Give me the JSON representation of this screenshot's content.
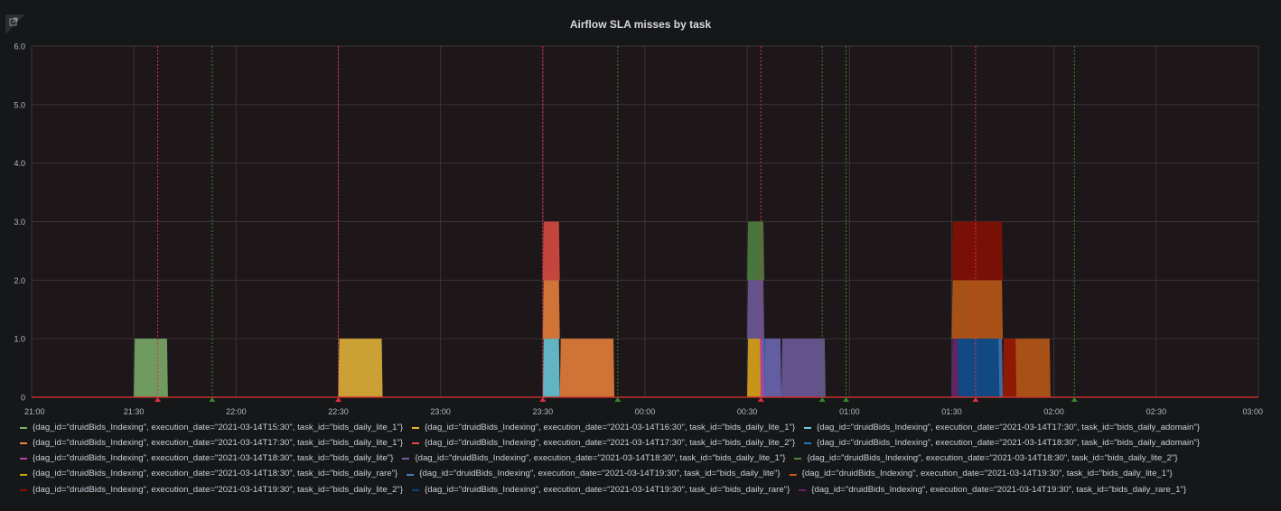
{
  "panel": {
    "title": "Airflow SLA misses by task",
    "menu_icon": "share-icon"
  },
  "chart_data": {
    "type": "area",
    "title": "Airflow SLA misses by task",
    "stacked": true,
    "grid": true,
    "legend_position": "bottom",
    "x_unit": "time",
    "xlim": [
      "21:00",
      "03:00"
    ],
    "ylim": [
      0,
      6
    ],
    "x_ticks": [
      "21:00",
      "21:30",
      "22:00",
      "22:30",
      "23:00",
      "23:30",
      "00:00",
      "00:30",
      "01:00",
      "01:30",
      "02:00",
      "02:30",
      "03:00"
    ],
    "y_ticks": [
      "0",
      "1.0",
      "2.0",
      "3.0",
      "4.0",
      "5.0",
      "6.0"
    ],
    "series": [
      {
        "name": "{dag_id=\"druidBids_Indexing\", execution_date=\"2021-03-14T15:30\", task_id=\"bids_daily_lite_1\"}",
        "color": "#7EB26D",
        "segments": [
          {
            "start": "21:30",
            "end": "21:40",
            "value": 1
          }
        ]
      },
      {
        "name": "{dag_id=\"druidBids_Indexing\", execution_date=\"2021-03-14T16:30\", task_id=\"bids_daily_lite_1\"}",
        "color": "#EAB839",
        "segments": [
          {
            "start": "22:30",
            "end": "22:43",
            "value": 1
          }
        ]
      },
      {
        "name": "{dag_id=\"druidBids_Indexing\", execution_date=\"2021-03-14T17:30\", task_id=\"bids_daily_adomain\"}",
        "color": "#6ED0E0",
        "segments": [
          {
            "start": "23:30",
            "end": "23:35",
            "value": 1
          }
        ]
      },
      {
        "name": "{dag_id=\"druidBids_Indexing\", execution_date=\"2021-03-14T17:30\", task_id=\"bids_daily_lite_1\"}",
        "color": "#EF843C",
        "segments": [
          {
            "start": "23:30",
            "end": "23:35",
            "value": 1
          },
          {
            "start": "23:35",
            "end": "23:51",
            "value": 1
          }
        ]
      },
      {
        "name": "{dag_id=\"druidBids_Indexing\", execution_date=\"2021-03-14T17:30\", task_id=\"bids_daily_lite_2\"}",
        "color": "#E24D42",
        "segments": [
          {
            "start": "23:30",
            "end": "23:35",
            "value": 1
          }
        ]
      },
      {
        "name": "{dag_id=\"druidBids_Indexing\", execution_date=\"2021-03-14T18:30\", task_id=\"bids_daily_adomain\"}",
        "color": "#1F78C1",
        "segments": [
          {
            "start": "00:30",
            "end": "00:40",
            "value": 1
          }
        ]
      },
      {
        "name": "{dag_id=\"druidBids_Indexing\", execution_date=\"2021-03-14T18:30\", task_id=\"bids_daily_lite\"}",
        "color": "#BA43A9",
        "segments": [
          {
            "start": "00:30",
            "end": "00:35",
            "value": 1
          }
        ]
      },
      {
        "name": "{dag_id=\"druidBids_Indexing\", execution_date=\"2021-03-14T18:30\", task_id=\"bids_daily_lite_1\"}",
        "color": "#705DA0",
        "segments": [
          {
            "start": "00:30",
            "end": "00:35",
            "value": 1
          },
          {
            "start": "00:35",
            "end": "00:40",
            "value": 1
          },
          {
            "start": "00:40",
            "end": "00:53",
            "value": 1
          }
        ]
      },
      {
        "name": "{dag_id=\"druidBids_Indexing\", execution_date=\"2021-03-14T18:30\", task_id=\"bids_daily_lite_2\"}",
        "color": "#508642",
        "segments": [
          {
            "start": "00:30",
            "end": "00:35",
            "value": 1
          }
        ]
      },
      {
        "name": "{dag_id=\"druidBids_Indexing\", execution_date=\"2021-03-14T18:30\", task_id=\"bids_daily_rare\"}",
        "color": "#CCA300",
        "segments": [
          {
            "start": "00:30",
            "end": "00:34",
            "value": 1
          }
        ]
      },
      {
        "name": "{dag_id=\"druidBids_Indexing\", execution_date=\"2021-03-14T19:30\", task_id=\"bids_daily_lite\"}",
        "color": "#447EBC",
        "segments": [
          {
            "start": "01:30",
            "end": "01:45",
            "value": 1
          }
        ]
      },
      {
        "name": "{dag_id=\"druidBids_Indexing\", execution_date=\"2021-03-14T19:30\", task_id=\"bids_daily_lite_1\"}",
        "color": "#C15C17",
        "segments": [
          {
            "start": "01:30",
            "end": "01:45",
            "value": 1
          },
          {
            "start": "01:45",
            "end": "01:59",
            "value": 1
          }
        ]
      },
      {
        "name": "{dag_id=\"druidBids_Indexing\", execution_date=\"2021-03-14T19:30\", task_id=\"bids_daily_lite_2\"}",
        "color": "#890F02",
        "segments": [
          {
            "start": "01:30",
            "end": "01:45",
            "value": 1
          },
          {
            "start": "01:45",
            "end": "01:49",
            "value": 1
          }
        ]
      },
      {
        "name": "{dag_id=\"druidBids_Indexing\", execution_date=\"2021-03-14T19:30\", task_id=\"bids_daily_rare\"}",
        "color": "#0A437C",
        "segments": [
          {
            "start": "01:30",
            "end": "01:44",
            "value": 1
          }
        ]
      },
      {
        "name": "{dag_id=\"druidBids_Indexing\", execution_date=\"2021-03-14T19:30\", task_id=\"bids_daily_rare_1\"}",
        "color": "#6D1F62",
        "segments": [
          {
            "start": "01:30",
            "end": "01:32",
            "value": 1
          }
        ]
      }
    ],
    "annotations": [
      {
        "kind": "red",
        "color": "#E02F44",
        "times": [
          "21:37",
          "22:30",
          "23:30",
          "00:34",
          "01:37"
        ]
      },
      {
        "kind": "green",
        "color": "#37872D",
        "times": [
          "21:53",
          "23:52",
          "00:52",
          "00:59",
          "02:06"
        ]
      }
    ]
  },
  "legend_rows": [
    [
      0,
      1,
      2
    ],
    [
      3,
      4,
      5
    ],
    [
      6,
      7,
      8
    ],
    [
      9,
      10,
      11
    ],
    [
      12,
      13,
      14
    ]
  ]
}
